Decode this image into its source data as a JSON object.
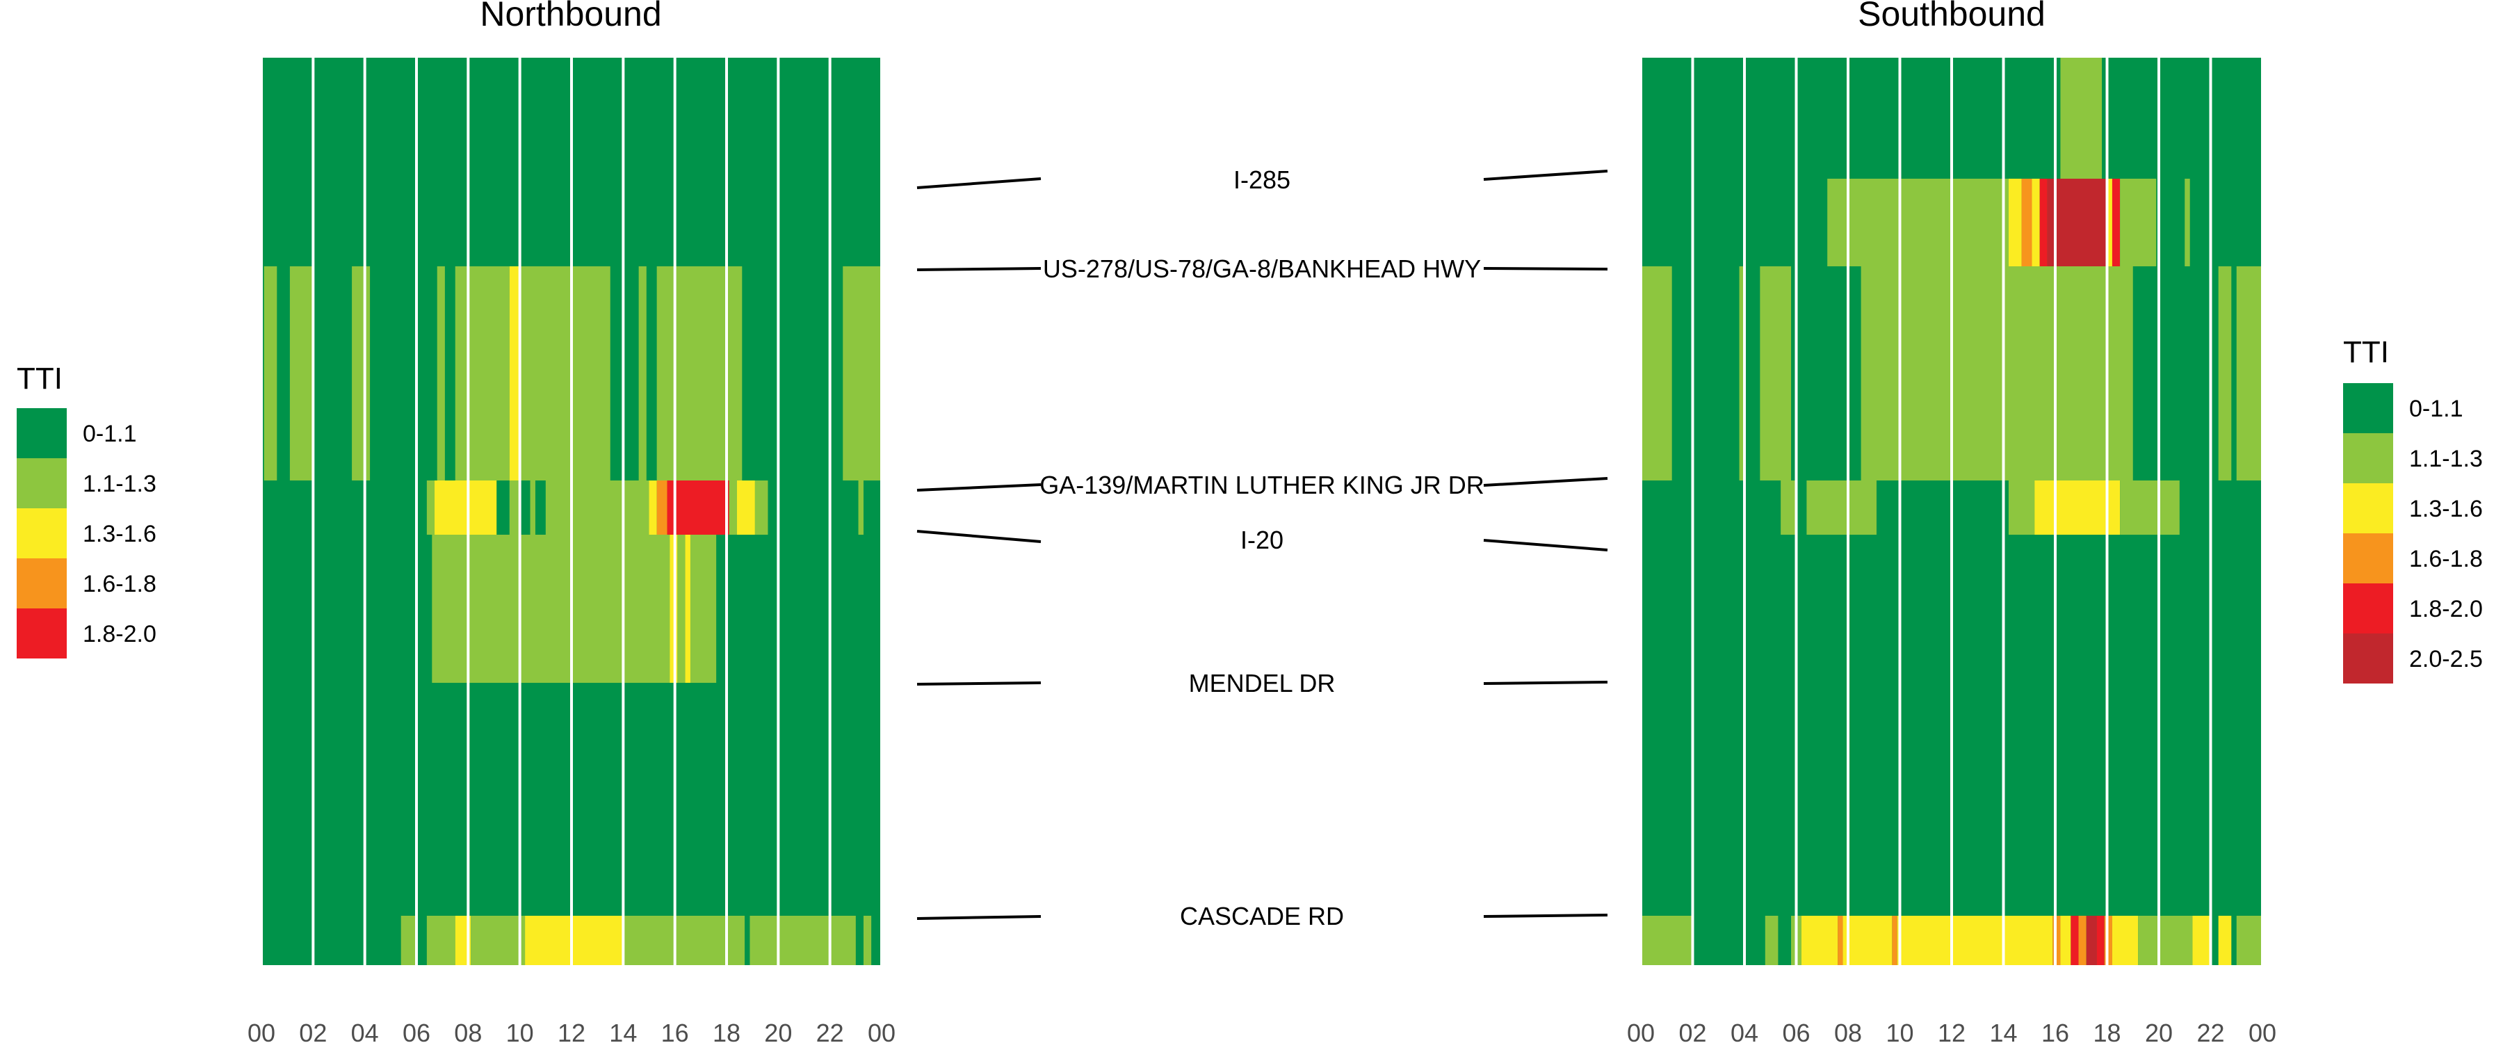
{
  "page": {
    "left_title": "Northbound",
    "right_title": "Southbound"
  },
  "locations": [
    "I-285",
    "US-278/US-78/GA-8/BANKHEAD HWY",
    "GA-139/MARTIN LUTHER KING JR DR",
    "I-20",
    "MENDEL DR",
    "CASCADE RD"
  ],
  "colors": {
    "0-1.1": "#00934a",
    "1.1-1.3": "#8dc63f",
    "1.3-1.6": "#fbec22",
    "1.6-1.8": "#f7941d",
    "1.8-2.0": "#ed1c24",
    "2.0-2.5": "#c1272d",
    "grid": "#ffffff"
  },
  "legend_left": {
    "title": "TTI",
    "items": [
      "0-1.1",
      "1.1-1.3",
      "1.3-1.6",
      "1.6-1.8",
      "1.8-2.0"
    ]
  },
  "legend_right": {
    "title": "TTI",
    "items": [
      "0-1.1",
      "1.1-1.3",
      "1.3-1.6",
      "1.6-1.8",
      "1.8-2.0",
      "2.0-2.5"
    ]
  },
  "chart_data": [
    {
      "type": "heatmap",
      "title": "Northbound",
      "x_range_hours": [
        0,
        24
      ],
      "x_ticks": [
        "00",
        "02",
        "04",
        "06",
        "08",
        "10",
        "12",
        "14",
        "16",
        "18",
        "20",
        "22",
        "00"
      ],
      "y_sections": [
        "I-285 to US-278/US-78/GA-8/BANKHEAD HWY",
        "US-278/US-78/GA-8/BANKHEAD HWY to GA-139/MARTIN LUTHER KING JR DR",
        "GA-139/MARTIN LUTHER KING JR DR to I-20",
        "I-20 to MENDEL DR",
        "MENDEL DR to CASCADE RD",
        "CASCADE RD"
      ],
      "background_category": "0-1.1",
      "cells": [
        {
          "section": 1,
          "start": 0.1,
          "end": 0.6,
          "cat": "1.1-1.3"
        },
        {
          "section": 1,
          "start": 1.1,
          "end": 2.0,
          "cat": "1.1-1.3"
        },
        {
          "section": 1,
          "start": 3.5,
          "end": 4.2,
          "cat": "1.1-1.3"
        },
        {
          "section": 1,
          "start": 6.8,
          "end": 7.1,
          "cat": "1.1-1.3"
        },
        {
          "section": 1,
          "start": 7.5,
          "end": 9.6,
          "cat": "1.1-1.3"
        },
        {
          "section": 1,
          "start": 9.6,
          "end": 10.0,
          "cat": "1.3-1.6"
        },
        {
          "section": 1,
          "start": 10.0,
          "end": 13.5,
          "cat": "1.1-1.3"
        },
        {
          "section": 1,
          "start": 14.6,
          "end": 14.9,
          "cat": "1.1-1.3"
        },
        {
          "section": 1,
          "start": 15.3,
          "end": 18.6,
          "cat": "1.1-1.3"
        },
        {
          "section": 1,
          "start": 22.5,
          "end": 24.0,
          "cat": "1.1-1.3"
        },
        {
          "section": 2,
          "start": 6.4,
          "end": 6.7,
          "cat": "1.1-1.3"
        },
        {
          "section": 2,
          "start": 6.7,
          "end": 9.1,
          "cat": "1.3-1.6"
        },
        {
          "section": 2,
          "start": 9.6,
          "end": 10.0,
          "cat": "1.1-1.3"
        },
        {
          "section": 2,
          "start": 10.4,
          "end": 10.6,
          "cat": "1.1-1.3"
        },
        {
          "section": 2,
          "start": 11.0,
          "end": 15.0,
          "cat": "1.1-1.3"
        },
        {
          "section": 2,
          "start": 15.0,
          "end": 15.3,
          "cat": "1.3-1.6"
        },
        {
          "section": 2,
          "start": 15.3,
          "end": 15.7,
          "cat": "1.6-1.8"
        },
        {
          "section": 2,
          "start": 15.7,
          "end": 18.1,
          "cat": "1.8-2.0"
        },
        {
          "section": 2,
          "start": 18.1,
          "end": 18.4,
          "cat": "1.1-1.3"
        },
        {
          "section": 2,
          "start": 18.4,
          "end": 19.1,
          "cat": "1.3-1.6"
        },
        {
          "section": 2,
          "start": 19.1,
          "end": 19.6,
          "cat": "1.1-1.3"
        },
        {
          "section": 2,
          "start": 23.1,
          "end": 23.3,
          "cat": "1.1-1.3"
        },
        {
          "section": 3,
          "start": 6.6,
          "end": 15.8,
          "cat": "1.1-1.3"
        },
        {
          "section": 3,
          "start": 15.8,
          "end": 16.1,
          "cat": "1.3-1.6"
        },
        {
          "section": 3,
          "start": 16.1,
          "end": 16.4,
          "cat": "1.1-1.3"
        },
        {
          "section": 3,
          "start": 16.4,
          "end": 16.6,
          "cat": "1.3-1.6"
        },
        {
          "section": 3,
          "start": 16.6,
          "end": 17.6,
          "cat": "1.1-1.3"
        },
        {
          "section": 5,
          "start": 5.4,
          "end": 6.0,
          "cat": "1.1-1.3"
        },
        {
          "section": 5,
          "start": 6.4,
          "end": 7.5,
          "cat": "1.1-1.3"
        },
        {
          "section": 5,
          "start": 7.5,
          "end": 8.1,
          "cat": "1.3-1.6"
        },
        {
          "section": 5,
          "start": 8.1,
          "end": 10.2,
          "cat": "1.1-1.3"
        },
        {
          "section": 5,
          "start": 10.2,
          "end": 14.0,
          "cat": "1.3-1.6"
        },
        {
          "section": 5,
          "start": 14.0,
          "end": 18.7,
          "cat": "1.1-1.3"
        },
        {
          "section": 5,
          "start": 18.9,
          "end": 23.0,
          "cat": "1.1-1.3"
        },
        {
          "section": 5,
          "start": 23.3,
          "end": 23.6,
          "cat": "1.1-1.3"
        }
      ]
    },
    {
      "type": "heatmap",
      "title": "Southbound",
      "x_range_hours": [
        0,
        24
      ],
      "x_ticks": [
        "00",
        "02",
        "04",
        "06",
        "08",
        "10",
        "12",
        "14",
        "16",
        "18",
        "20",
        "22",
        "00"
      ],
      "y_sections": [
        "I-285 to US-278/US-78/GA-8/BANKHEAD HWY",
        "US-278/US-78/GA-8/BANKHEAD HWY to GA-139/MARTIN LUTHER KING JR DR",
        "GA-139/MARTIN LUTHER KING JR DR to I-20",
        "I-20 to MENDEL DR",
        "MENDEL DR to CASCADE RD",
        "CASCADE RD"
      ],
      "background_category": "0-1.1",
      "cells": [
        {
          "section": 0,
          "start": 16.2,
          "end": 17.8,
          "cat": "1.1-1.3"
        },
        {
          "section": 0,
          "start": 7.2,
          "end": 14.2,
          "cat": "1.1-1.3",
          "top_fraction": 0.58
        },
        {
          "section": 0,
          "start": 14.2,
          "end": 14.7,
          "cat": "1.3-1.6",
          "top_fraction": 0.58
        },
        {
          "section": 0,
          "start": 14.7,
          "end": 15.1,
          "cat": "1.6-1.8",
          "top_fraction": 0.58
        },
        {
          "section": 0,
          "start": 15.1,
          "end": 15.4,
          "cat": "1.3-1.6",
          "top_fraction": 0.58
        },
        {
          "section": 0,
          "start": 15.4,
          "end": 15.7,
          "cat": "1.8-2.0",
          "top_fraction": 0.58
        },
        {
          "section": 0,
          "start": 15.7,
          "end": 18.0,
          "cat": "2.0-2.5",
          "top_fraction": 0.58
        },
        {
          "section": 0,
          "start": 18.0,
          "end": 18.2,
          "cat": "1.3-1.6",
          "top_fraction": 0.58
        },
        {
          "section": 0,
          "start": 18.2,
          "end": 18.5,
          "cat": "1.8-2.0",
          "top_fraction": 0.58
        },
        {
          "section": 0,
          "start": 18.5,
          "end": 19.9,
          "cat": "1.1-1.3",
          "top_fraction": 0.58
        },
        {
          "section": 0,
          "start": 21.0,
          "end": 21.2,
          "cat": "1.1-1.3",
          "top_fraction": 0.58
        },
        {
          "section": 1,
          "start": 0.0,
          "end": 1.2,
          "cat": "1.1-1.3"
        },
        {
          "section": 1,
          "start": 3.8,
          "end": 4.0,
          "cat": "1.1-1.3"
        },
        {
          "section": 1,
          "start": 4.6,
          "end": 5.8,
          "cat": "1.1-1.3"
        },
        {
          "section": 1,
          "start": 8.5,
          "end": 19.0,
          "cat": "1.1-1.3"
        },
        {
          "section": 1,
          "start": 22.3,
          "end": 22.8,
          "cat": "1.1-1.3"
        },
        {
          "section": 1,
          "start": 23.0,
          "end": 24.0,
          "cat": "1.1-1.3"
        },
        {
          "section": 2,
          "start": 5.4,
          "end": 6.0,
          "cat": "1.1-1.3"
        },
        {
          "section": 2,
          "start": 6.4,
          "end": 9.1,
          "cat": "1.1-1.3"
        },
        {
          "section": 2,
          "start": 14.2,
          "end": 15.2,
          "cat": "1.1-1.3"
        },
        {
          "section": 2,
          "start": 15.2,
          "end": 18.5,
          "cat": "1.3-1.6"
        },
        {
          "section": 2,
          "start": 18.5,
          "end": 20.8,
          "cat": "1.1-1.3"
        },
        {
          "section": 5,
          "start": 0.0,
          "end": 2.0,
          "cat": "1.1-1.3"
        },
        {
          "section": 5,
          "start": 4.8,
          "end": 5.3,
          "cat": "1.1-1.3"
        },
        {
          "section": 5,
          "start": 5.8,
          "end": 6.2,
          "cat": "1.1-1.3"
        },
        {
          "section": 5,
          "start": 6.2,
          "end": 7.6,
          "cat": "1.3-1.6"
        },
        {
          "section": 5,
          "start": 7.6,
          "end": 7.8,
          "cat": "1.6-1.8"
        },
        {
          "section": 5,
          "start": 7.8,
          "end": 9.7,
          "cat": "1.3-1.6"
        },
        {
          "section": 5,
          "start": 9.7,
          "end": 9.9,
          "cat": "1.6-1.8"
        },
        {
          "section": 5,
          "start": 9.9,
          "end": 15.9,
          "cat": "1.3-1.6"
        },
        {
          "section": 5,
          "start": 15.9,
          "end": 16.2,
          "cat": "1.6-1.8"
        },
        {
          "section": 5,
          "start": 16.2,
          "end": 16.6,
          "cat": "1.3-1.6"
        },
        {
          "section": 5,
          "start": 16.6,
          "end": 16.9,
          "cat": "1.8-2.0"
        },
        {
          "section": 5,
          "start": 16.9,
          "end": 17.2,
          "cat": "1.6-1.8"
        },
        {
          "section": 5,
          "start": 17.2,
          "end": 17.6,
          "cat": "2.0-2.5"
        },
        {
          "section": 5,
          "start": 17.6,
          "end": 17.9,
          "cat": "1.8-2.0"
        },
        {
          "section": 5,
          "start": 17.9,
          "end": 18.2,
          "cat": "1.6-1.8"
        },
        {
          "section": 5,
          "start": 18.2,
          "end": 19.2,
          "cat": "1.3-1.6"
        },
        {
          "section": 5,
          "start": 19.2,
          "end": 21.3,
          "cat": "1.1-1.3"
        },
        {
          "section": 5,
          "start": 21.3,
          "end": 22.0,
          "cat": "1.3-1.6"
        },
        {
          "section": 5,
          "start": 22.3,
          "end": 22.8,
          "cat": "1.3-1.6"
        },
        {
          "section": 5,
          "start": 23.0,
          "end": 24.0,
          "cat": "1.1-1.3"
        }
      ]
    }
  ]
}
